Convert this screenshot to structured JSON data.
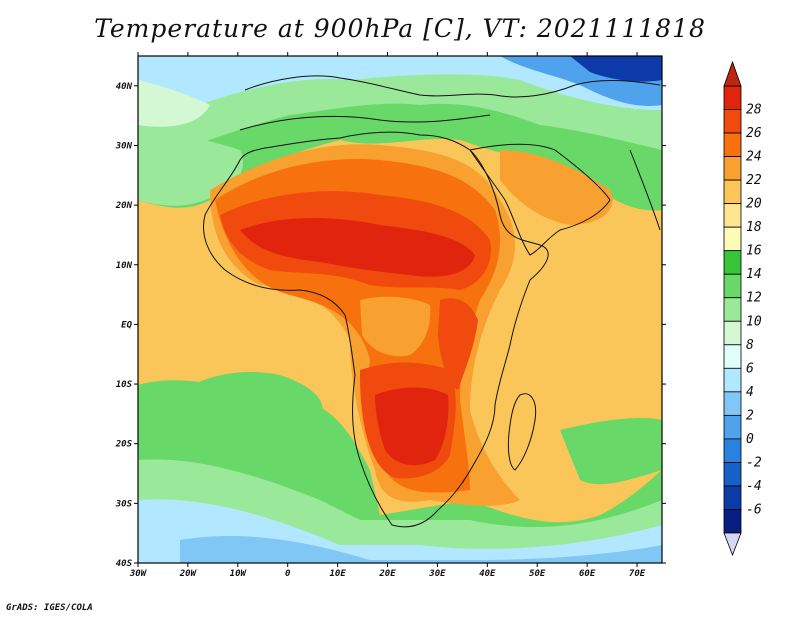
{
  "title": "Temperature at 900hPa [C], VT: 2021111818",
  "credit": "GrADS: IGES/COLA",
  "map": {
    "projection": "latlon",
    "lon_range": [
      -30,
      75
    ],
    "lat_range": [
      -40,
      45
    ],
    "x_ticks": [
      "30W",
      "20W",
      "10W",
      "0",
      "10E",
      "20E",
      "30E",
      "40E",
      "50E",
      "60E",
      "70E"
    ],
    "y_ticks": [
      "40N",
      "30N",
      "20N",
      "10N",
      "EQ",
      "10S",
      "20S",
      "30S",
      "40S"
    ]
  },
  "colorbar": {
    "label_values": [
      "28",
      "26",
      "24",
      "22",
      "20",
      "18",
      "16",
      "14",
      "12",
      "10",
      "8",
      "6",
      "4",
      "2",
      "0",
      "-2",
      "-4",
      "-6"
    ],
    "colors": [
      "#e0240e",
      "#f04a0e",
      "#f7720f",
      "#f8a030",
      "#fbc659",
      "#fde68f",
      "#fefab8",
      "#37c437",
      "#68d868",
      "#9ae89a",
      "#d4f7d4",
      "#e1fff9",
      "#b2e8ff",
      "#81c7f6",
      "#4ea3ec",
      "#2a82e0",
      "#1760c7",
      "#0c3aa8",
      "#081e80"
    ],
    "top_arrow_color": "#c0260f",
    "bottom_arrow_color": "#d6d6f5"
  }
}
